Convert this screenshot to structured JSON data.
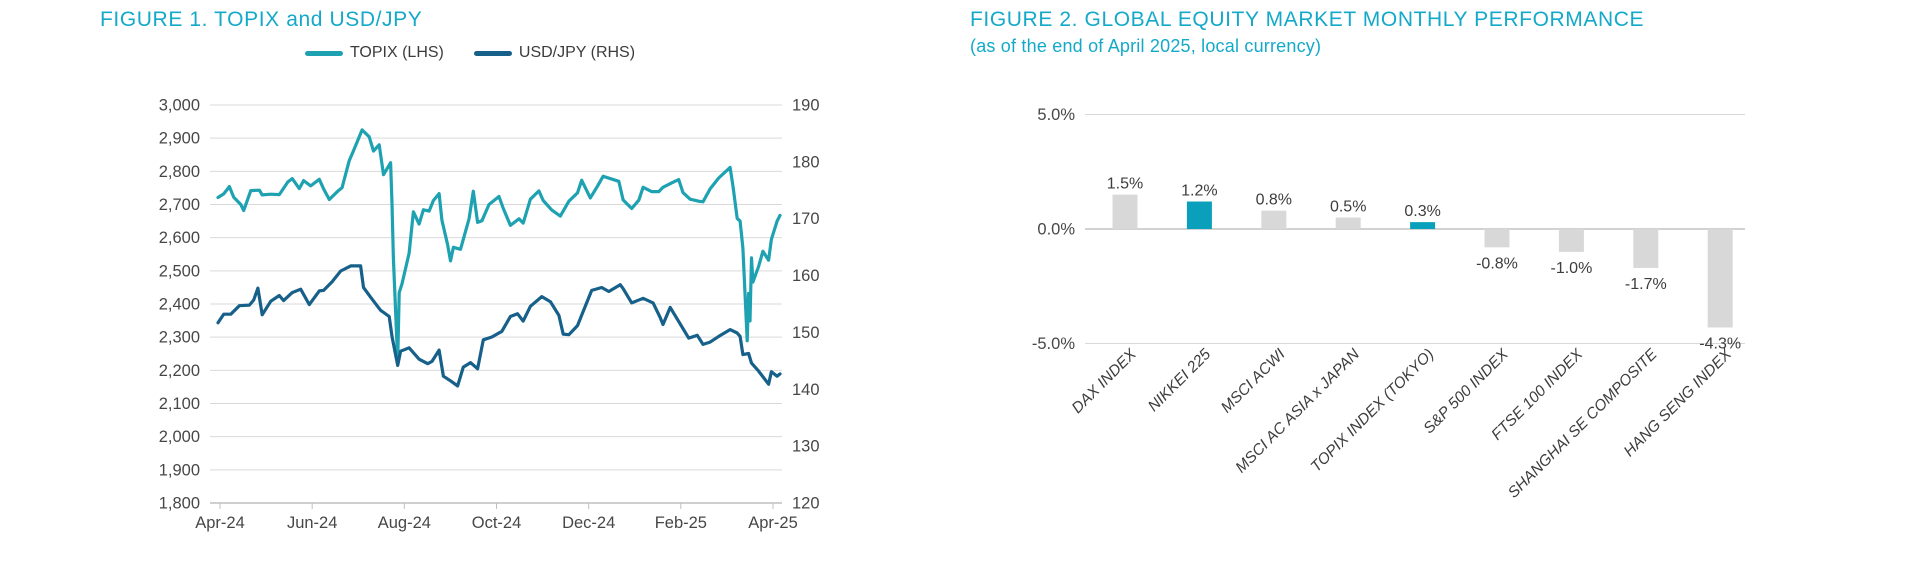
{
  "page": {
    "background": "#ffffff"
  },
  "colors": {
    "accent_teal": "#14a9c9",
    "line_topix": "#1ea2b1",
    "line_usdjpy": "#16608a",
    "bar_gray": "#d8d8d8",
    "bar_highlight": "#0a9fba",
    "grid": "#d9d9d9",
    "axis_line": "#bfbfbf",
    "zero_line": "#c4c4c4",
    "axis_text": "#474747"
  },
  "figure1": {
    "title": "FIGURE 1. TOPIX and USD/JPY",
    "legend": [
      {
        "label": "TOPIX (LHS)"
      },
      {
        "label": "USD/JPY (RHS)"
      }
    ]
  },
  "figure2": {
    "title": "FIGURE 2. GLOBAL EQUITY MARKET MONTHLY PERFORMANCE",
    "subtitle": "(as of the end of April 2025, local currency)"
  },
  "chart_data": [
    {
      "type": "line",
      "title": "FIGURE 1. TOPIX and USD/JPY",
      "legend_position": "top-center",
      "grid": "horizontal",
      "x_range": [
        "2024-04-01",
        "2025-04-30"
      ],
      "x_tick_labels": [
        "Apr-24",
        "Jun-24",
        "Aug-24",
        "Oct-24",
        "Dec-24",
        "Feb-25",
        "Apr-25"
      ],
      "left_axis": {
        "min": 1800,
        "max": 3000,
        "step": 100,
        "tick_labels": [
          "3,000",
          "2,900",
          "2,800",
          "2,700",
          "2,600",
          "2,500",
          "2,400",
          "2,300",
          "2,200",
          "2,100",
          "2,000",
          "1,900",
          "1,800"
        ]
      },
      "right_axis": {
        "min": 120,
        "max": 190,
        "step": 10,
        "tick_labels": [
          "190",
          "180",
          "170",
          "160",
          "150",
          "140",
          "130",
          "120"
        ]
      },
      "series": [
        {
          "name": "TOPIX (LHS)",
          "axis": "left",
          "color": "#1ea2b1",
          "points": [
            [
              "2024-04-01",
              2721
            ],
            [
              "2024-04-05",
              2732
            ],
            [
              "2024-04-09",
              2754
            ],
            [
              "2024-04-12",
              2722
            ],
            [
              "2024-04-17",
              2700
            ],
            [
              "2024-04-19",
              2682
            ],
            [
              "2024-04-24",
              2742
            ],
            [
              "2024-04-30",
              2743
            ],
            [
              "2024-05-02",
              2729
            ],
            [
              "2024-05-08",
              2731
            ],
            [
              "2024-05-14",
              2730
            ],
            [
              "2024-05-20",
              2768
            ],
            [
              "2024-05-23",
              2778
            ],
            [
              "2024-05-28",
              2748
            ],
            [
              "2024-05-31",
              2772
            ],
            [
              "2024-06-05",
              2756
            ],
            [
              "2024-06-11",
              2776
            ],
            [
              "2024-06-14",
              2747
            ],
            [
              "2024-06-18",
              2715
            ],
            [
              "2024-06-24",
              2740
            ],
            [
              "2024-06-27",
              2751
            ],
            [
              "2024-07-02",
              2832
            ],
            [
              "2024-07-05",
              2862
            ],
            [
              "2024-07-11",
              2925
            ],
            [
              "2024-07-16",
              2904
            ],
            [
              "2024-07-19",
              2861
            ],
            [
              "2024-07-23",
              2880
            ],
            [
              "2024-07-26",
              2790
            ],
            [
              "2024-07-31",
              2826
            ],
            [
              "2024-08-01",
              2703
            ],
            [
              "2024-08-02",
              2537
            ],
            [
              "2024-08-05",
              2227
            ],
            [
              "2024-08-06",
              2434
            ],
            [
              "2024-08-08",
              2461
            ],
            [
              "2024-08-13",
              2553
            ],
            [
              "2024-08-16",
              2678
            ],
            [
              "2024-08-20",
              2641
            ],
            [
              "2024-08-23",
              2684
            ],
            [
              "2024-08-27",
              2680
            ],
            [
              "2024-08-30",
              2712
            ],
            [
              "2024-09-03",
              2733
            ],
            [
              "2024-09-05",
              2653
            ],
            [
              "2024-09-09",
              2579
            ],
            [
              "2024-09-11",
              2530
            ],
            [
              "2024-09-13",
              2571
            ],
            [
              "2024-09-18",
              2565
            ],
            [
              "2024-09-24",
              2656
            ],
            [
              "2024-09-27",
              2740
            ],
            [
              "2024-09-30",
              2646
            ],
            [
              "2024-10-03",
              2651
            ],
            [
              "2024-10-08",
              2700
            ],
            [
              "2024-10-15",
              2724
            ],
            [
              "2024-10-18",
              2688
            ],
            [
              "2024-10-23",
              2637
            ],
            [
              "2024-10-29",
              2657
            ],
            [
              "2024-11-01",
              2644
            ],
            [
              "2024-11-06",
              2716
            ],
            [
              "2024-11-12",
              2741
            ],
            [
              "2024-11-15",
              2712
            ],
            [
              "2024-11-21",
              2683
            ],
            [
              "2024-11-27",
              2665
            ],
            [
              "2024-12-03",
              2710
            ],
            [
              "2024-12-09",
              2735
            ],
            [
              "2024-12-12",
              2773
            ],
            [
              "2024-12-18",
              2720
            ],
            [
              "2024-12-23",
              2755
            ],
            [
              "2024-12-27",
              2785
            ],
            [
              "2025-01-07",
              2770
            ],
            [
              "2025-01-10",
              2714
            ],
            [
              "2025-01-16",
              2688
            ],
            [
              "2025-01-21",
              2713
            ],
            [
              "2025-01-24",
              2752
            ],
            [
              "2025-01-30",
              2739
            ],
            [
              "2025-02-04",
              2739
            ],
            [
              "2025-02-07",
              2752
            ],
            [
              "2025-02-13",
              2765
            ],
            [
              "2025-02-18",
              2775
            ],
            [
              "2025-02-21",
              2736
            ],
            [
              "2025-02-26",
              2716
            ],
            [
              "2025-03-04",
              2710
            ],
            [
              "2025-03-07",
              2708
            ],
            [
              "2025-03-12",
              2747
            ],
            [
              "2025-03-18",
              2780
            ],
            [
              "2025-03-26",
              2812
            ],
            [
              "2025-03-28",
              2757
            ],
            [
              "2025-03-31",
              2658
            ],
            [
              "2025-04-02",
              2650
            ],
            [
              "2025-04-04",
              2568
            ],
            [
              "2025-04-07",
              2289
            ],
            [
              "2025-04-08",
              2432
            ],
            [
              "2025-04-09",
              2349
            ],
            [
              "2025-04-10",
              2539
            ],
            [
              "2025-04-11",
              2466
            ],
            [
              "2025-04-15",
              2513
            ],
            [
              "2025-04-18",
              2559
            ],
            [
              "2025-04-22",
              2532
            ],
            [
              "2025-04-24",
              2595
            ],
            [
              "2025-04-28",
              2650
            ],
            [
              "2025-04-30",
              2667
            ]
          ]
        },
        {
          "name": "USD/JPY (RHS)",
          "axis": "right",
          "color": "#16608a",
          "points": [
            [
              "2024-04-01",
              151.7
            ],
            [
              "2024-04-05",
              153.2
            ],
            [
              "2024-04-10",
              153.2
            ],
            [
              "2024-04-16",
              154.7
            ],
            [
              "2024-04-23",
              154.8
            ],
            [
              "2024-04-26",
              155.7
            ],
            [
              "2024-04-29",
              157.8
            ],
            [
              "2024-05-02",
              153.1
            ],
            [
              "2024-05-08",
              155.5
            ],
            [
              "2024-05-14",
              156.5
            ],
            [
              "2024-05-17",
              155.6
            ],
            [
              "2024-05-23",
              157.0
            ],
            [
              "2024-05-29",
              157.6
            ],
            [
              "2024-06-04",
              154.9
            ],
            [
              "2024-06-11",
              157.3
            ],
            [
              "2024-06-14",
              157.4
            ],
            [
              "2024-06-20",
              158.9
            ],
            [
              "2024-06-26",
              160.8
            ],
            [
              "2024-07-03",
              161.7
            ],
            [
              "2024-07-10",
              161.7
            ],
            [
              "2024-07-12",
              157.9
            ],
            [
              "2024-07-17",
              156.2
            ],
            [
              "2024-07-24",
              153.9
            ],
            [
              "2024-07-30",
              152.8
            ],
            [
              "2024-08-01",
              149.3
            ],
            [
              "2024-08-05",
              144.2
            ],
            [
              "2024-08-07",
              146.7
            ],
            [
              "2024-08-13",
              147.3
            ],
            [
              "2024-08-20",
              145.3
            ],
            [
              "2024-08-26",
              144.5
            ],
            [
              "2024-08-29",
              144.9
            ],
            [
              "2024-09-03",
              146.9
            ],
            [
              "2024-09-06",
              142.3
            ],
            [
              "2024-09-11",
              141.5
            ],
            [
              "2024-09-16",
              140.6
            ],
            [
              "2024-09-20",
              143.9
            ],
            [
              "2024-09-25",
              144.7
            ],
            [
              "2024-09-30",
              143.6
            ],
            [
              "2024-10-04",
              148.7
            ],
            [
              "2024-10-10",
              149.2
            ],
            [
              "2024-10-17",
              150.2
            ],
            [
              "2024-10-23",
              152.8
            ],
            [
              "2024-10-28",
              153.3
            ],
            [
              "2024-11-01",
              152.0
            ],
            [
              "2024-11-06",
              154.6
            ],
            [
              "2024-11-14",
              156.3
            ],
            [
              "2024-11-20",
              155.4
            ],
            [
              "2024-11-26",
              153.0
            ],
            [
              "2024-11-29",
              149.7
            ],
            [
              "2024-12-03",
              149.6
            ],
            [
              "2024-12-09",
              151.2
            ],
            [
              "2024-12-13",
              153.7
            ],
            [
              "2024-12-19",
              157.4
            ],
            [
              "2024-12-26",
              157.9
            ],
            [
              "2024-12-31",
              157.2
            ],
            [
              "2025-01-08",
              158.4
            ],
            [
              "2025-01-10",
              157.7
            ],
            [
              "2025-01-16",
              155.2
            ],
            [
              "2025-01-24",
              156.0
            ],
            [
              "2025-01-31",
              155.2
            ],
            [
              "2025-02-05",
              152.6
            ],
            [
              "2025-02-07",
              151.4
            ],
            [
              "2025-02-12",
              154.4
            ],
            [
              "2025-02-19",
              151.5
            ],
            [
              "2025-02-25",
              149.0
            ],
            [
              "2025-03-03",
              149.5
            ],
            [
              "2025-03-07",
              147.9
            ],
            [
              "2025-03-12",
              148.3
            ],
            [
              "2025-03-18",
              149.3
            ],
            [
              "2025-03-26",
              150.5
            ],
            [
              "2025-03-31",
              149.9
            ],
            [
              "2025-04-02",
              149.3
            ],
            [
              "2025-04-04",
              146.1
            ],
            [
              "2025-04-08",
              146.3
            ],
            [
              "2025-04-10",
              144.6
            ],
            [
              "2025-04-15",
              143.2
            ],
            [
              "2025-04-22",
              140.9
            ],
            [
              "2025-04-24",
              143.1
            ],
            [
              "2025-04-28",
              142.3
            ],
            [
              "2025-04-30",
              142.7
            ]
          ]
        }
      ]
    },
    {
      "type": "bar",
      "title": "FIGURE 2. GLOBAL EQUITY MARKET MONTHLY PERFORMANCE",
      "subtitle": "(as of the end of April 2025, local currency)",
      "categories": [
        "DAX INDEX",
        "NIKKEI 225",
        "MSCI ACWI",
        "MSCI AC ASIA x JAPAN",
        "TOPIX INDEX (TOKYO)",
        "S&P 500 INDEX",
        "FTSE 100 INDEX",
        "SHANGHAI SE COMPOSITE",
        "HANG SENG INDEX"
      ],
      "values": [
        1.5,
        1.2,
        0.8,
        0.5,
        0.3,
        -0.8,
        -1.0,
        -1.7,
        -4.3
      ],
      "value_labels": [
        "1.5%",
        "1.2%",
        "0.8%",
        "0.5%",
        "0.3%",
        "-0.8%",
        "-1.0%",
        "-1.7%",
        "-4.3%"
      ],
      "highlighted_indices": [
        1,
        4
      ],
      "ylim": [
        -5,
        5
      ],
      "y_ticks": [
        5,
        0,
        -5
      ],
      "y_tick_labels": [
        "5.0%",
        "0.0%",
        "-5.0%"
      ],
      "grid": "horizontal",
      "category_label_style": "italic, rotated 45deg"
    }
  ]
}
